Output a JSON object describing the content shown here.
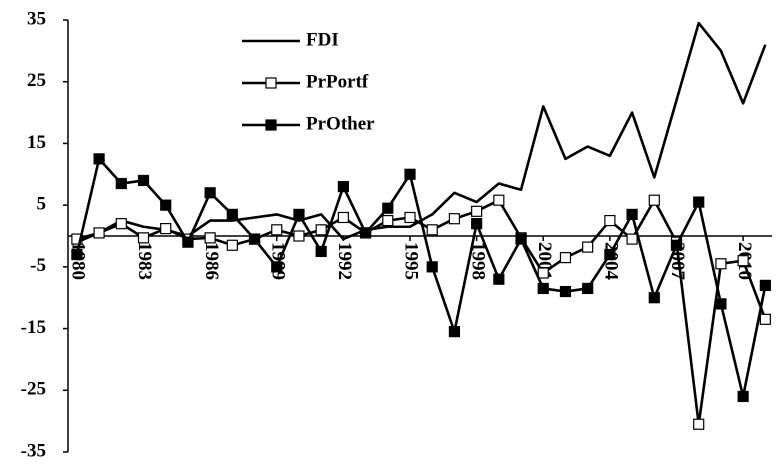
{
  "chart_data": {
    "type": "line",
    "x": [
      1980,
      1981,
      1982,
      1983,
      1984,
      1985,
      1986,
      1987,
      1988,
      1989,
      1990,
      1991,
      1992,
      1993,
      1994,
      1995,
      1996,
      1997,
      1998,
      1999,
      2000,
      2001,
      2002,
      2003,
      2004,
      2005,
      2006,
      2007,
      2008,
      2009,
      2010,
      2011
    ],
    "xlim": [
      1979.6,
      2011.3
    ],
    "xticks": [
      1980,
      1983,
      1986,
      1989,
      1992,
      1995,
      1998,
      2001,
      2004,
      2007,
      2010
    ],
    "ylim": [
      -35,
      35
    ],
    "yticks": [
      -35,
      -25,
      -15,
      -5,
      5,
      15,
      25,
      35
    ],
    "legend": "top",
    "series": [
      {
        "name": "FDI",
        "color": "#000000",
        "marker": "none",
        "values": [
          -1,
          0.5,
          2.5,
          1.5,
          1,
          0,
          2.5,
          2.5,
          3,
          3.5,
          2.5,
          3.5,
          -0.5,
          1,
          1.5,
          1.5,
          3.5,
          7,
          5.5,
          8.5,
          7.5,
          21,
          12.5,
          14.5,
          13,
          20,
          9.5,
          22,
          34.5,
          30,
          21.5,
          31
        ]
      },
      {
        "name": "PrPortf",
        "color": "#000000",
        "marker": "open-square",
        "values": [
          -0.5,
          0.5,
          2,
          -0.3,
          1.2,
          -0.5,
          -0.3,
          -1.5,
          -0.5,
          1,
          0,
          1,
          3,
          0.5,
          2.5,
          3,
          1,
          2.8,
          4,
          5.8,
          -0.3,
          -6,
          -3.5,
          -1.8,
          2.5,
          -0.5,
          5.8,
          -1,
          -30.5,
          -4.5,
          -4,
          -13.5
        ]
      },
      {
        "name": "PrOther",
        "color": "#000000",
        "marker": "filled-square",
        "values": [
          -3,
          12.5,
          8.5,
          9,
          5,
          -1,
          7,
          3.5,
          -0.5,
          -5,
          3.5,
          -2.5,
          8,
          0.5,
          4.5,
          10,
          -5,
          -15.5,
          2,
          -7,
          -0.5,
          -8.5,
          -9,
          -8.5,
          -3,
          3.5,
          -10,
          -1.5,
          5.5,
          -11,
          -26,
          -8
        ]
      }
    ]
  }
}
